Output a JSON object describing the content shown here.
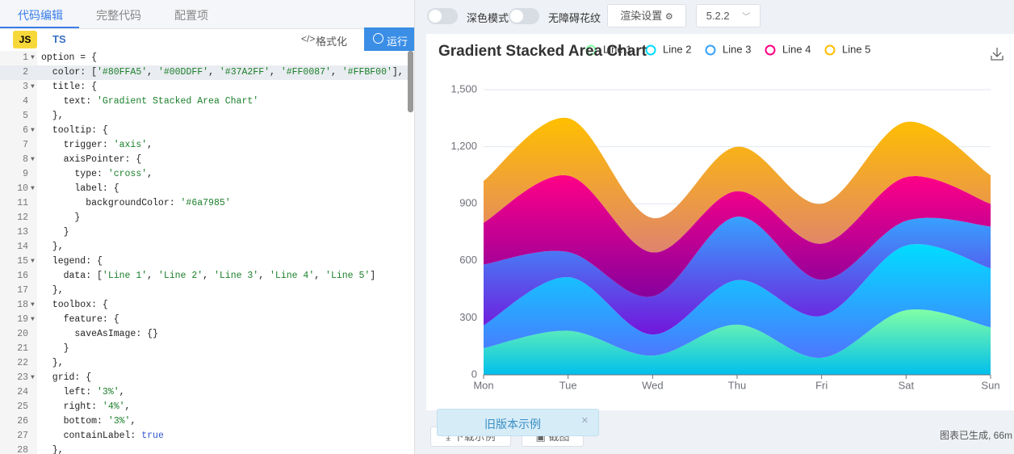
{
  "tabs": [
    "代码编辑",
    "完整代码",
    "配置项"
  ],
  "lang": [
    "JS",
    "TS"
  ],
  "editor_buttons": {
    "format": "格式化",
    "run": "运行"
  },
  "code_lines": [
    {
      "n": 1,
      "text": "option = {"
    },
    {
      "n": 2,
      "text": "  color: ['#80FFA5', '#00DDFF', '#37A2FF', '#FF0087', '#FFBF00'],"
    },
    {
      "n": 3,
      "text": "  title: {"
    },
    {
      "n": 4,
      "text": "    text: 'Gradient Stacked Area Chart'"
    },
    {
      "n": 5,
      "text": "  },"
    },
    {
      "n": 6,
      "text": "  tooltip: {"
    },
    {
      "n": 7,
      "text": "    trigger: 'axis',"
    },
    {
      "n": 8,
      "text": "    axisPointer: {"
    },
    {
      "n": 9,
      "text": "      type: 'cross',"
    },
    {
      "n": 10,
      "text": "      label: {"
    },
    {
      "n": 11,
      "text": "        backgroundColor: '#6a7985'"
    },
    {
      "n": 12,
      "text": "      }"
    },
    {
      "n": 13,
      "text": "    }"
    },
    {
      "n": 14,
      "text": "  },"
    },
    {
      "n": 15,
      "text": "  legend: {"
    },
    {
      "n": 16,
      "text": "    data: ['Line 1', 'Line 2', 'Line 3', 'Line 4', 'Line 5']"
    },
    {
      "n": 17,
      "text": "  },"
    },
    {
      "n": 18,
      "text": "  toolbox: {"
    },
    {
      "n": 19,
      "text": "    feature: {"
    },
    {
      "n": 20,
      "text": "      saveAsImage: {}"
    },
    {
      "n": 21,
      "text": "    }"
    },
    {
      "n": 22,
      "text": "  },"
    },
    {
      "n": 23,
      "text": "  grid: {"
    },
    {
      "n": 24,
      "text": "    left: '3%',"
    },
    {
      "n": 25,
      "text": "    right: '4%',"
    },
    {
      "n": 26,
      "text": "    bottom: '3%',"
    },
    {
      "n": 27,
      "text": "    containLabel: true"
    },
    {
      "n": 28,
      "text": "  },"
    }
  ],
  "toolbar": {
    "dark_mode": "深色模式",
    "aria": "无障碍花纹",
    "render": "渲染设置",
    "version": "5.2.2"
  },
  "chart_data": {
    "type": "area",
    "stacked": true,
    "smooth": true,
    "title": "Gradient Stacked Area Chart",
    "categories": [
      "Mon",
      "Tue",
      "Wed",
      "Thu",
      "Fri",
      "Sat",
      "Sun"
    ],
    "series": [
      {
        "name": "Line 1",
        "color": "#80FFA5",
        "gradient_to": "#01BFEC",
        "values": [
          140,
          232,
          101,
          264,
          90,
          340,
          250
        ]
      },
      {
        "name": "Line 2",
        "color": "#00DDFF",
        "gradient_to": "#4D77FF",
        "values": [
          120,
          282,
          111,
          234,
          220,
          340,
          310
        ]
      },
      {
        "name": "Line 3",
        "color": "#37A2FF",
        "gradient_to": "#7415DB",
        "values": [
          320,
          132,
          201,
          334,
          190,
          130,
          220
        ]
      },
      {
        "name": "Line 4",
        "color": "#FF0087",
        "gradient_to": "#87009D",
        "values": [
          220,
          402,
          231,
          134,
          190,
          230,
          120
        ]
      },
      {
        "name": "Line 5",
        "color": "#FFBF00",
        "gradient_to": "#E0836E",
        "values": [
          220,
          302,
          181,
          234,
          210,
          290,
          150
        ]
      }
    ],
    "ylim": [
      0,
      1500
    ],
    "yticks": [
      0,
      300,
      600,
      900,
      {
        "value": 1200,
        "label": "1,200"
      },
      {
        "value": 1500,
        "label": "1,500"
      }
    ],
    "grid": true
  },
  "footer": {
    "old_version": "旧版本示例",
    "close": "×",
    "download": "下载示例",
    "screenshot": "截图",
    "status": "图表已生成, 66m"
  }
}
